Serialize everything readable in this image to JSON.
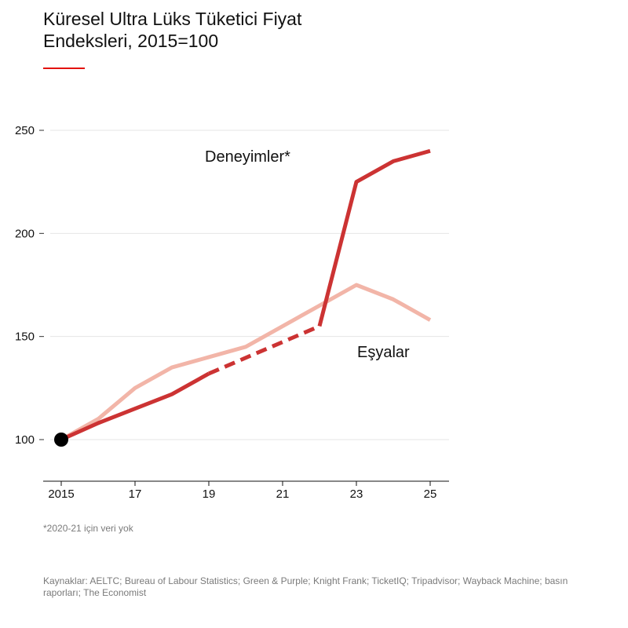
{
  "title": "Küresel Ultra Lüks Tüketici Fiyat Endeksleri, 2015=100",
  "footnote": "*2020-21 için veri yok",
  "sources": "Kaynaklar: AELTC; Bureau of Labour Statistics; Green & Purple; Knight Frank; TicketIQ; Tripadvisor; Wayback Machine; basın raporları; The Economist",
  "colors": {
    "experiences": "#cc3333",
    "goods": "#f2b5a8",
    "accent_rule": "#e3120b",
    "grid": "#e6e6e6",
    "axis": "#111111",
    "marker": "#000000"
  },
  "chart_data": {
    "type": "line",
    "title": "Küresel Ultra Lüks Tüketici Fiyat Endeksleri, 2015=100",
    "xlabel": "",
    "ylabel": "",
    "xlim": [
      2014.5,
      2025.5
    ],
    "ylim": [
      80,
      265
    ],
    "yticks": [
      100,
      150,
      200,
      250
    ],
    "ytick_labels": [
      "100",
      "150",
      "200",
      "250"
    ],
    "xticks": [
      2015,
      2017,
      2019,
      2021,
      2023,
      2025
    ],
    "xtick_labels": [
      "2015",
      "17",
      "19",
      "21",
      "23",
      "25"
    ],
    "grid": true,
    "series": [
      {
        "name": "Eşyalar",
        "label": "Eşyalar",
        "color": "#f2b5a8",
        "x": [
          2015,
          2016,
          2017,
          2018,
          2019,
          2020,
          2021,
          2022,
          2023,
          2024,
          2025
        ],
        "values": [
          100,
          110,
          125,
          135,
          140,
          145,
          155,
          165,
          175,
          168,
          158
        ]
      },
      {
        "name": "Deneyimler*",
        "label": "Deneyimler*",
        "color": "#cc3333",
        "x": [
          2015,
          2016,
          2017,
          2018,
          2019,
          2022,
          2023,
          2024,
          2025
        ],
        "values": [
          100,
          108,
          115,
          122,
          132,
          155,
          225,
          235,
          240
        ],
        "dashed_between": [
          2019,
          2022
        ]
      }
    ],
    "start_marker": {
      "x": 2015,
      "y": 100
    }
  }
}
